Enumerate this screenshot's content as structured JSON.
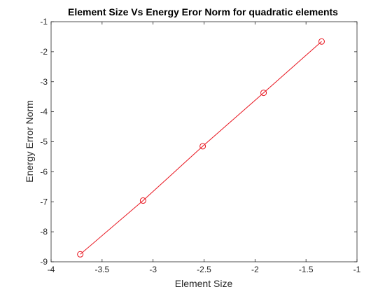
{
  "chart_data": {
    "type": "line",
    "title": "Element Size Vs Energy Eror Norm for quadratic elements",
    "xlabel": "Element Size",
    "ylabel": "Energy Error Norm",
    "xlim": [
      -4,
      -1
    ],
    "ylim": [
      -9,
      -1
    ],
    "xticks": [
      -4,
      -3.5,
      -3,
      -2.5,
      -2,
      -1.5,
      -1
    ],
    "yticks": [
      -9,
      -8,
      -7,
      -6,
      -5,
      -4,
      -3,
      -2,
      -1
    ],
    "grid": false,
    "legend": "none",
    "series": [
      {
        "x": [
          -3.714,
          -3.098,
          -2.513,
          -1.916,
          -1.347
        ],
        "y": [
          -8.75,
          -6.96,
          -5.15,
          -3.37,
          -1.66
        ],
        "color": "#e8141e",
        "marker": "circle"
      }
    ]
  }
}
